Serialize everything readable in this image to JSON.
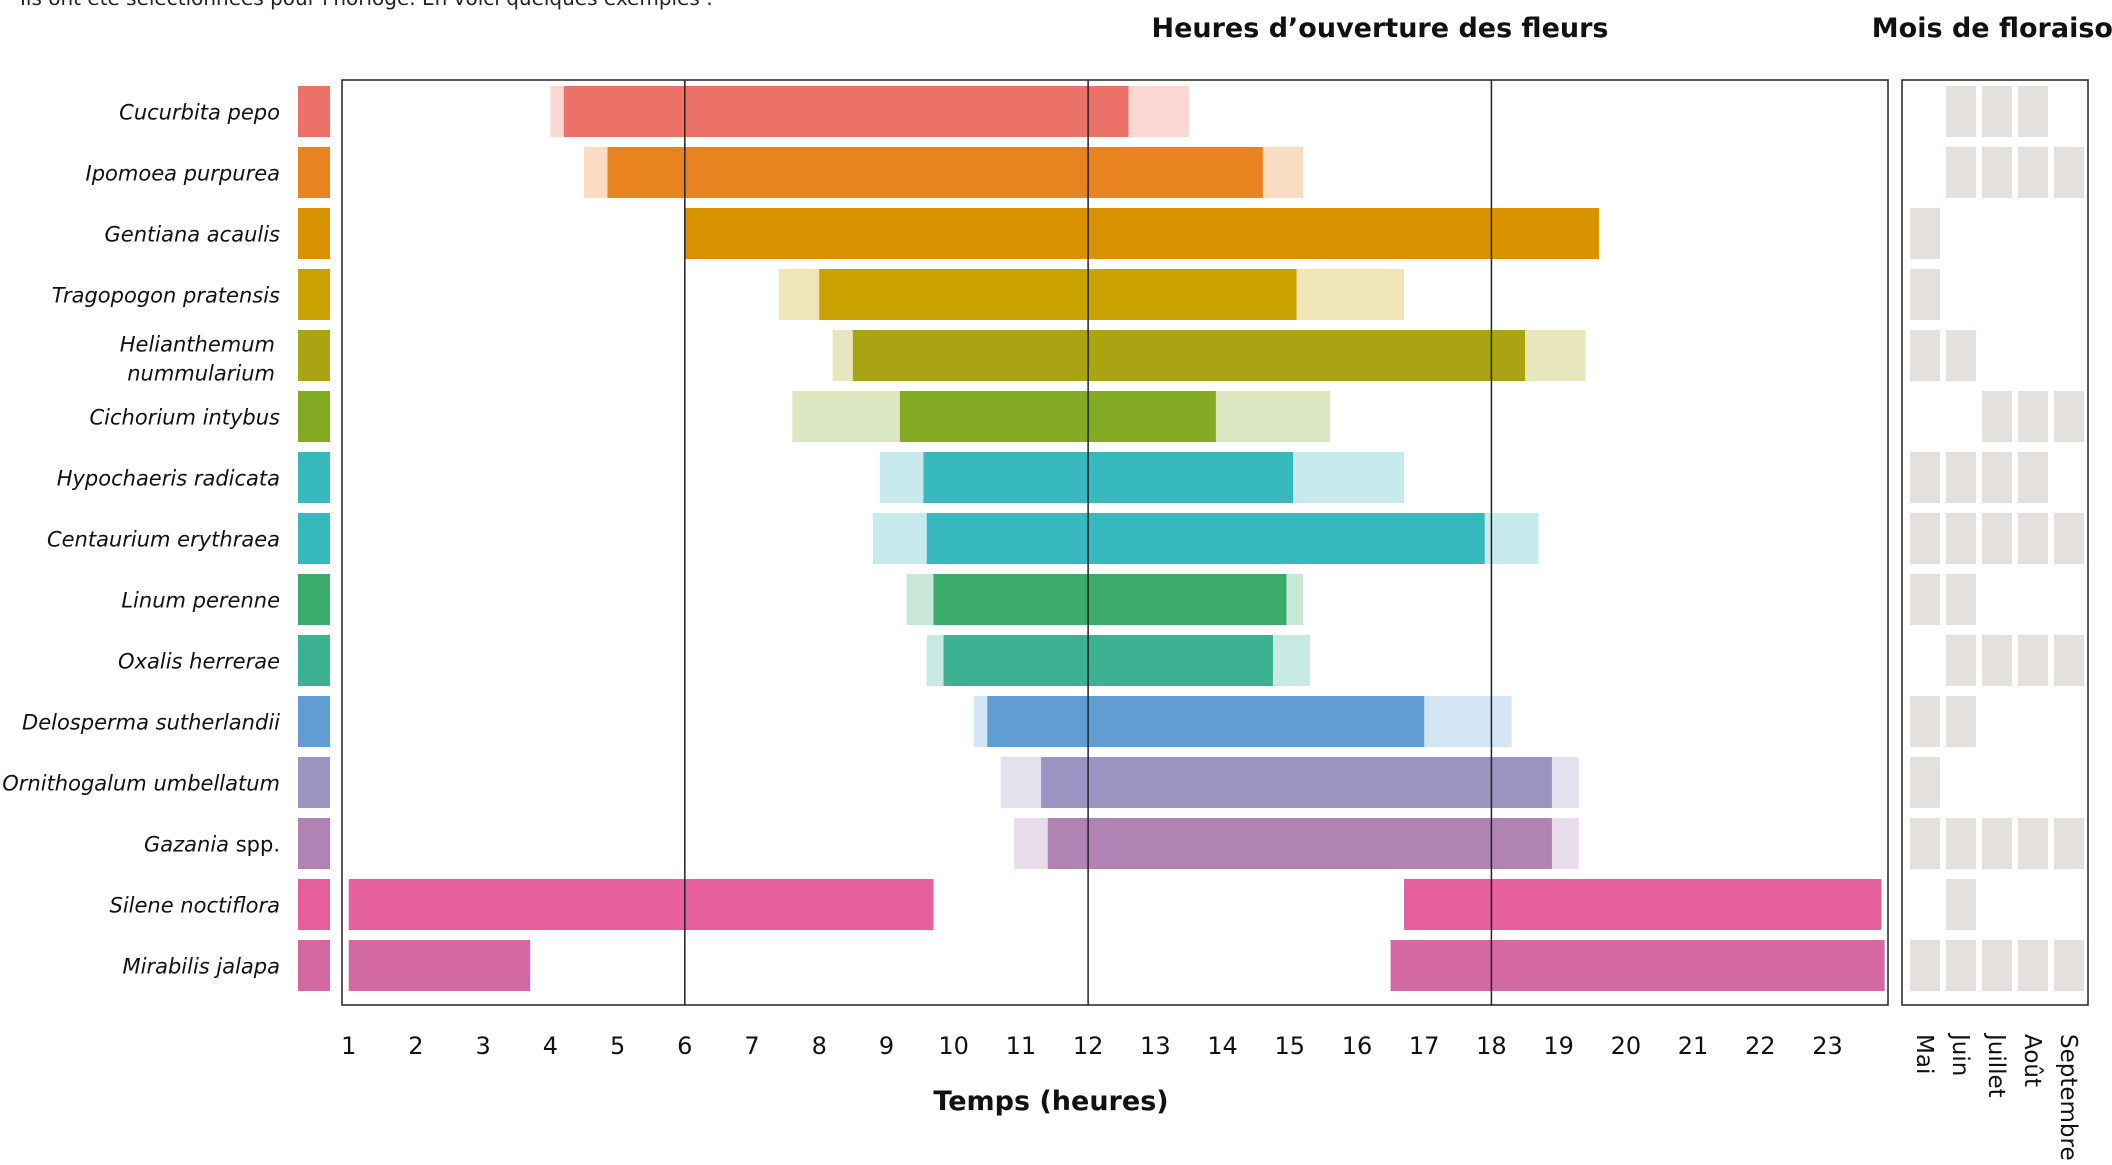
{
  "intro_text": "Ils ont été sélectionnées pour l'horloge. En voici quelques exemples :",
  "chart_data": {
    "type": "gantt",
    "title": "Heures d’ouverture des fleurs",
    "xlabel": "Temps (heures)",
    "xlim": [
      0.9,
      23.9
    ],
    "x_ticks": [
      1,
      2,
      3,
      4,
      5,
      6,
      7,
      8,
      9,
      10,
      11,
      12,
      13,
      14,
      15,
      16,
      17,
      18,
      19,
      20,
      21,
      22,
      23
    ],
    "reference_lines": [
      6,
      12,
      18
    ],
    "species": [
      {
        "name": "Cucurbita pepo",
        "suffix": "",
        "color": "#ec7168",
        "open": [
          [
            4.2,
            12.6
          ]
        ],
        "range": [
          4.0,
          13.5
        ],
        "months": [
          0,
          1,
          1,
          1,
          0
        ]
      },
      {
        "name": "Ipomoea purpurea",
        "suffix": "",
        "color": "#e88320",
        "open": [
          [
            4.85,
            14.6
          ]
        ],
        "range": [
          4.5,
          15.2
        ],
        "months": [
          0,
          1,
          1,
          1,
          1
        ]
      },
      {
        "name": "Gentiana acaulis",
        "suffix": "",
        "color": "#d99200",
        "open": [
          [
            6.0,
            19.6
          ]
        ],
        "range": [
          6.0,
          19.6
        ],
        "months": [
          1,
          0,
          0,
          0,
          0
        ]
      },
      {
        "name": "Tragopogon pratensis",
        "suffix": "",
        "color": "#c9a200",
        "open": [
          [
            8.0,
            15.1
          ]
        ],
        "range": [
          7.4,
          16.7
        ],
        "months": [
          1,
          0,
          0,
          0,
          0
        ]
      },
      {
        "name": "Helianthemum nummularium",
        "suffix": "",
        "color": "#aaa413",
        "open": [
          [
            8.5,
            18.5
          ]
        ],
        "range": [
          8.2,
          19.4
        ],
        "months": [
          1,
          1,
          0,
          0,
          0
        ]
      },
      {
        "name": "Cichorium intybus",
        "suffix": "",
        "color": "#82aa22",
        "open": [
          [
            9.2,
            13.9
          ]
        ],
        "range": [
          7.6,
          15.6
        ],
        "months": [
          0,
          0,
          1,
          1,
          1
        ]
      },
      {
        "name": "Hypochaeris radicata",
        "suffix": "",
        "color": "#36b8bd",
        "open": [
          [
            9.55,
            15.05
          ]
        ],
        "range": [
          8.9,
          16.7
        ],
        "months": [
          1,
          1,
          1,
          1,
          0
        ]
      },
      {
        "name": "Centaurium erythraea",
        "suffix": "",
        "color": "#36b8bd",
        "open": [
          [
            9.6,
            17.9
          ]
        ],
        "range": [
          8.8,
          18.7
        ],
        "months": [
          1,
          1,
          1,
          1,
          1
        ]
      },
      {
        "name": "Linum perenne",
        "suffix": "",
        "color": "#3aab6b",
        "open": [
          [
            9.7,
            14.95
          ]
        ],
        "range": [
          9.3,
          15.2
        ],
        "months": [
          1,
          1,
          0,
          0,
          0
        ]
      },
      {
        "name": "Oxalis herrerae",
        "suffix": "",
        "color": "#3cb293",
        "open": [
          [
            9.85,
            14.75
          ]
        ],
        "range": [
          9.6,
          15.3
        ],
        "months": [
          0,
          1,
          1,
          1,
          1
        ]
      },
      {
        "name": "Delosperma sutherlandii",
        "suffix": "",
        "color": "#619dd1",
        "open": [
          [
            10.5,
            17.0
          ]
        ],
        "range": [
          10.3,
          18.3
        ],
        "months": [
          1,
          1,
          0,
          0,
          0
        ]
      },
      {
        "name": "Ornithogalum umbellatum",
        "suffix": "",
        "color": "#9b94c2",
        "open": [
          [
            11.3,
            18.9
          ]
        ],
        "range": [
          10.7,
          19.3
        ],
        "months": [
          1,
          0,
          0,
          0,
          0
        ]
      },
      {
        "name": "Gazania",
        "suffix": "spp.",
        "color": "#b083b4",
        "open": [
          [
            11.4,
            18.9
          ]
        ],
        "range": [
          10.9,
          19.3
        ],
        "months": [
          1,
          1,
          1,
          1,
          1
        ]
      },
      {
        "name": "Silene noctiflora",
        "suffix": "",
        "color": "#e6609d",
        "open": [
          [
            1.0,
            9.7
          ],
          [
            16.7,
            23.8
          ]
        ],
        "range": null,
        "months": [
          0,
          1,
          0,
          0,
          0
        ]
      },
      {
        "name": "Mirabilis jalapa",
        "suffix": "",
        "color": "#d468a3",
        "open": [
          [
            1.0,
            3.7
          ],
          [
            16.5,
            23.85
          ]
        ],
        "range": null,
        "months": [
          1,
          1,
          1,
          1,
          1
        ]
      }
    ],
    "months_panel": {
      "title": "Mois de floraison",
      "labels": [
        "Mai",
        "Juin",
        "Juillet",
        "Août",
        "Septembre"
      ],
      "cell_color": "#e3e0de"
    },
    "frame_color": "#222222",
    "grid": false
  }
}
